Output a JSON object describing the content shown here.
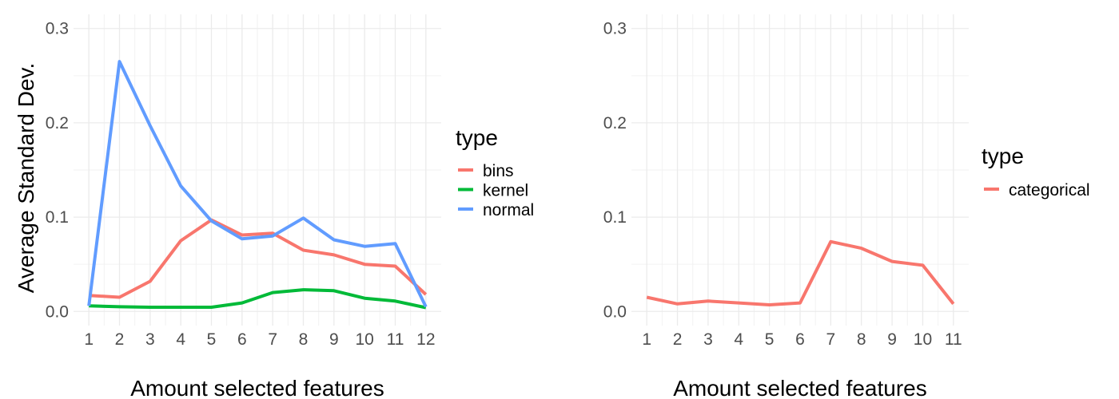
{
  "chart_data": [
    {
      "type": "line",
      "xlabel": "Amount selected features",
      "ylabel": "Average Standard Dev.",
      "x": [
        1,
        2,
        3,
        4,
        5,
        6,
        7,
        8,
        9,
        10,
        11,
        12
      ],
      "xlim": [
        0.5,
        12.5
      ],
      "ylim": [
        -0.015,
        0.315
      ],
      "yticks": [
        0.0,
        0.1,
        0.2,
        0.3
      ],
      "ytick_labels": [
        "0.0",
        "0.1",
        "0.2",
        "0.3"
      ],
      "xtick_labels": [
        "1",
        "2",
        "3",
        "4",
        "5",
        "6",
        "7",
        "8",
        "9",
        "10",
        "11",
        "12"
      ],
      "grid": true,
      "legend": {
        "title": "type",
        "placement": "right"
      },
      "series": [
        {
          "name": "bins",
          "color": "#F8766D",
          "values": [
            0.017,
            0.015,
            0.032,
            0.075,
            0.097,
            0.081,
            0.083,
            0.065,
            0.06,
            0.05,
            0.048,
            0.018
          ]
        },
        {
          "name": "kernel",
          "color": "#00BA38",
          "values": [
            0.006,
            0.005,
            0.0045,
            0.0045,
            0.0045,
            0.009,
            0.02,
            0.023,
            0.022,
            0.014,
            0.011,
            0.004
          ]
        },
        {
          "name": "normal",
          "color": "#619CFF",
          "values": [
            0.006,
            0.265,
            0.197,
            0.133,
            0.096,
            0.077,
            0.08,
            0.099,
            0.076,
            0.069,
            0.072,
            0.005
          ]
        }
      ]
    },
    {
      "type": "line",
      "xlabel": "Amount selected features",
      "ylabel": "",
      "x": [
        1,
        2,
        3,
        4,
        5,
        6,
        7,
        8,
        9,
        10,
        11
      ],
      "xlim": [
        0.5,
        11.5
      ],
      "ylim": [
        -0.015,
        0.315
      ],
      "yticks": [
        0.0,
        0.1,
        0.2,
        0.3
      ],
      "ytick_labels": [
        "0.0",
        "0.1",
        "0.2",
        "0.3"
      ],
      "xtick_labels": [
        "1",
        "2",
        "3",
        "4",
        "5",
        "6",
        "7",
        "8",
        "9",
        "10",
        "11"
      ],
      "grid": true,
      "legend": {
        "title": "type",
        "placement": "right"
      },
      "series": [
        {
          "name": "categorical",
          "color": "#F8766D",
          "values": [
            0.015,
            0.008,
            0.011,
            0.009,
            0.007,
            0.009,
            0.074,
            0.067,
            0.053,
            0.049,
            0.008
          ]
        }
      ]
    }
  ]
}
